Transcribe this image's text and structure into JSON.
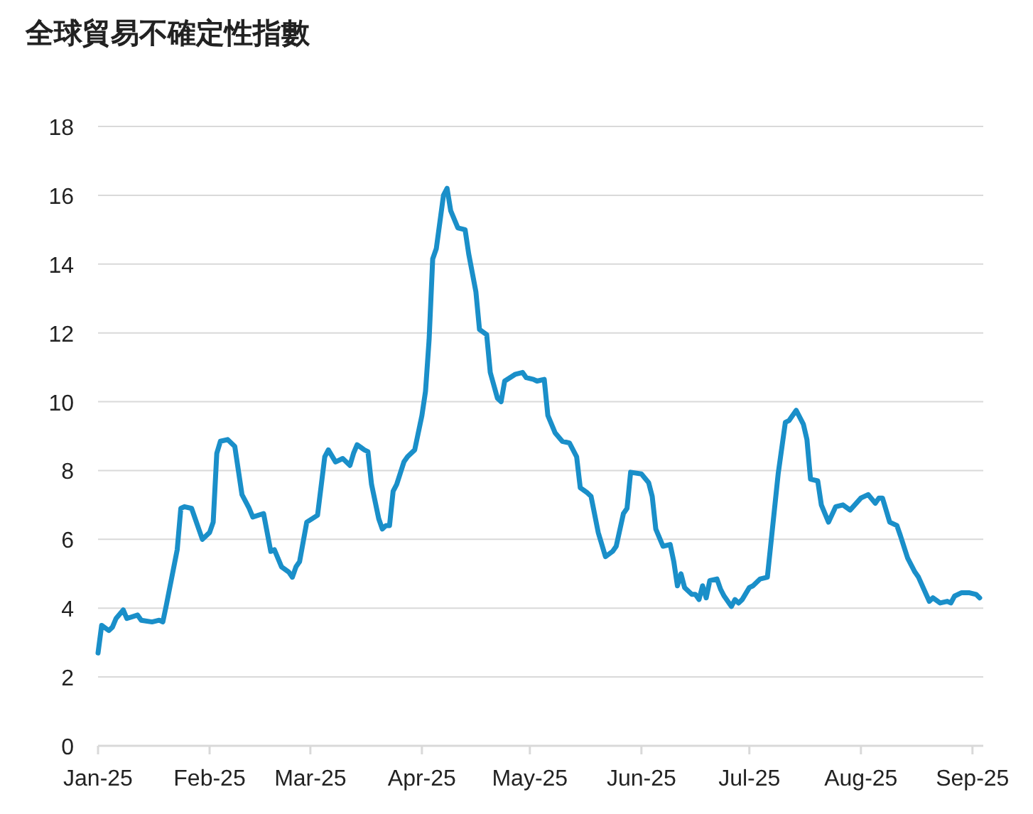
{
  "chart_data": {
    "type": "line",
    "title": "全球貿易不確定性指數",
    "x": [
      "2025-01-01",
      "2025-01-02",
      "2025-01-04",
      "2025-01-05",
      "2025-01-06",
      "2025-01-08",
      "2025-01-09",
      "2025-01-12",
      "2025-01-13",
      "2025-01-16",
      "2025-01-18",
      "2025-01-19",
      "2025-01-20",
      "2025-01-23",
      "2025-01-24",
      "2025-01-25",
      "2025-01-27",
      "2025-01-29",
      "2025-01-30",
      "2025-02-01",
      "2025-02-02",
      "2025-02-03",
      "2025-02-04",
      "2025-02-06",
      "2025-02-08",
      "2025-02-10",
      "2025-02-12",
      "2025-02-13",
      "2025-02-16",
      "2025-02-17",
      "2025-02-18",
      "2025-02-19",
      "2025-02-21",
      "2025-02-23",
      "2025-02-24",
      "2025-02-25",
      "2025-02-26",
      "2025-02-28",
      "2025-03-03",
      "2025-03-05",
      "2025-03-06",
      "2025-03-08",
      "2025-03-10",
      "2025-03-12",
      "2025-03-13",
      "2025-03-14",
      "2025-03-16",
      "2025-03-17",
      "2025-03-18",
      "2025-03-20",
      "2025-03-21",
      "2025-03-22",
      "2025-03-23",
      "2025-03-24",
      "2025-03-25",
      "2025-03-27",
      "2025-03-28",
      "2025-03-30",
      "2025-04-01",
      "2025-04-02",
      "2025-04-03",
      "2025-04-04",
      "2025-04-05",
      "2025-04-07",
      "2025-04-08",
      "2025-04-09",
      "2025-04-11",
      "2025-04-13",
      "2025-04-14",
      "2025-04-16",
      "2025-04-17",
      "2025-04-19",
      "2025-04-20",
      "2025-04-22",
      "2025-04-23",
      "2025-04-24",
      "2025-04-27",
      "2025-04-29",
      "2025-04-30",
      "2025-05-02",
      "2025-05-03",
      "2025-05-05",
      "2025-05-06",
      "2025-05-08",
      "2025-05-10",
      "2025-05-12",
      "2025-05-14",
      "2025-05-15",
      "2025-05-17",
      "2025-05-18",
      "2025-05-20",
      "2025-05-22",
      "2025-05-24",
      "2025-05-25",
      "2025-05-27",
      "2025-05-28",
      "2025-05-29",
      "2025-06-01",
      "2025-06-03",
      "2025-06-04",
      "2025-06-05",
      "2025-06-07",
      "2025-06-09",
      "2025-06-10",
      "2025-06-11",
      "2025-06-12",
      "2025-06-13",
      "2025-06-15",
      "2025-06-16",
      "2025-06-17",
      "2025-06-18",
      "2025-06-19",
      "2025-06-20",
      "2025-06-22",
      "2025-06-23",
      "2025-06-24",
      "2025-06-26",
      "2025-06-27",
      "2025-06-28",
      "2025-06-29",
      "2025-07-01",
      "2025-07-02",
      "2025-07-04",
      "2025-07-06",
      "2025-07-09",
      "2025-07-11",
      "2025-07-12",
      "2025-07-14",
      "2025-07-16",
      "2025-07-17",
      "2025-07-18",
      "2025-07-20",
      "2025-07-21",
      "2025-07-23",
      "2025-07-25",
      "2025-07-27",
      "2025-07-29",
      "2025-08-01",
      "2025-08-03",
      "2025-08-05",
      "2025-08-06",
      "2025-08-07",
      "2025-08-09",
      "2025-08-11",
      "2025-08-12",
      "2025-08-14",
      "2025-08-16",
      "2025-08-17",
      "2025-08-20",
      "2025-08-21",
      "2025-08-23",
      "2025-08-25",
      "2025-08-26",
      "2025-08-27",
      "2025-08-29",
      "2025-08-31",
      "2025-09-02",
      "2025-09-03"
    ],
    "series": [
      {
        "color": "#1a8fc9",
        "values": [
          2.7,
          3.5,
          3.35,
          3.45,
          3.7,
          3.95,
          3.7,
          3.8,
          3.65,
          3.6,
          3.65,
          3.6,
          4.1,
          5.7,
          6.9,
          6.95,
          6.9,
          6.3,
          6.0,
          6.2,
          6.5,
          8.5,
          8.85,
          8.9,
          8.7,
          7.3,
          6.9,
          6.65,
          6.75,
          6.2,
          5.65,
          5.7,
          5.2,
          5.05,
          4.9,
          5.2,
          5.35,
          6.5,
          6.7,
          8.4,
          8.6,
          8.25,
          8.35,
          8.15,
          8.5,
          8.75,
          8.6,
          8.55,
          7.6,
          6.6,
          6.3,
          6.4,
          6.4,
          7.4,
          7.6,
          8.25,
          8.4,
          8.6,
          9.6,
          10.3,
          11.8,
          14.15,
          14.45,
          16.0,
          16.2,
          15.55,
          15.05,
          15.0,
          14.3,
          13.2,
          12.1,
          11.95,
          10.85,
          10.1,
          10.0,
          10.6,
          10.8,
          10.85,
          10.7,
          10.65,
          10.6,
          10.65,
          9.6,
          9.1,
          8.85,
          8.8,
          8.4,
          7.5,
          7.35,
          7.25,
          6.2,
          5.5,
          5.65,
          5.8,
          6.75,
          6.9,
          7.95,
          7.9,
          7.65,
          7.25,
          6.3,
          5.8,
          5.85,
          5.35,
          4.65,
          5.0,
          4.6,
          4.4,
          4.4,
          4.25,
          4.65,
          4.3,
          4.8,
          4.85,
          4.55,
          4.35,
          4.05,
          4.25,
          4.15,
          4.25,
          4.6,
          4.65,
          4.85,
          4.9,
          7.9,
          9.4,
          9.45,
          9.75,
          9.35,
          8.9,
          7.75,
          7.7,
          7.0,
          6.5,
          6.95,
          7.0,
          6.85,
          7.2,
          7.3,
          7.05,
          7.2,
          7.2,
          6.5,
          6.4,
          6.1,
          5.45,
          5.05,
          4.9,
          4.2,
          4.3,
          4.15,
          4.2,
          4.15,
          4.35,
          4.45,
          4.45,
          4.4,
          4.3
        ]
      }
    ],
    "xlim": [
      "2025-01-01",
      "2025-09-04"
    ],
    "xticks": [
      {
        "value": "2025-01-01",
        "label": "Jan-25"
      },
      {
        "value": "2025-02-01",
        "label": "Feb-25"
      },
      {
        "value": "2025-03-01",
        "label": "Mar-25"
      },
      {
        "value": "2025-04-01",
        "label": "Apr-25"
      },
      {
        "value": "2025-05-01",
        "label": "May-25"
      },
      {
        "value": "2025-06-01",
        "label": "Jun-25"
      },
      {
        "value": "2025-07-01",
        "label": "Jul-25"
      },
      {
        "value": "2025-08-01",
        "label": "Aug-25"
      },
      {
        "value": "2025-09-01",
        "label": "Sep-25"
      }
    ],
    "ylim": [
      0,
      18
    ],
    "yticks": [
      0,
      2,
      4,
      6,
      8,
      10,
      12,
      14,
      16,
      18
    ],
    "grid": "y",
    "marker": "none",
    "line_style": "solid"
  }
}
